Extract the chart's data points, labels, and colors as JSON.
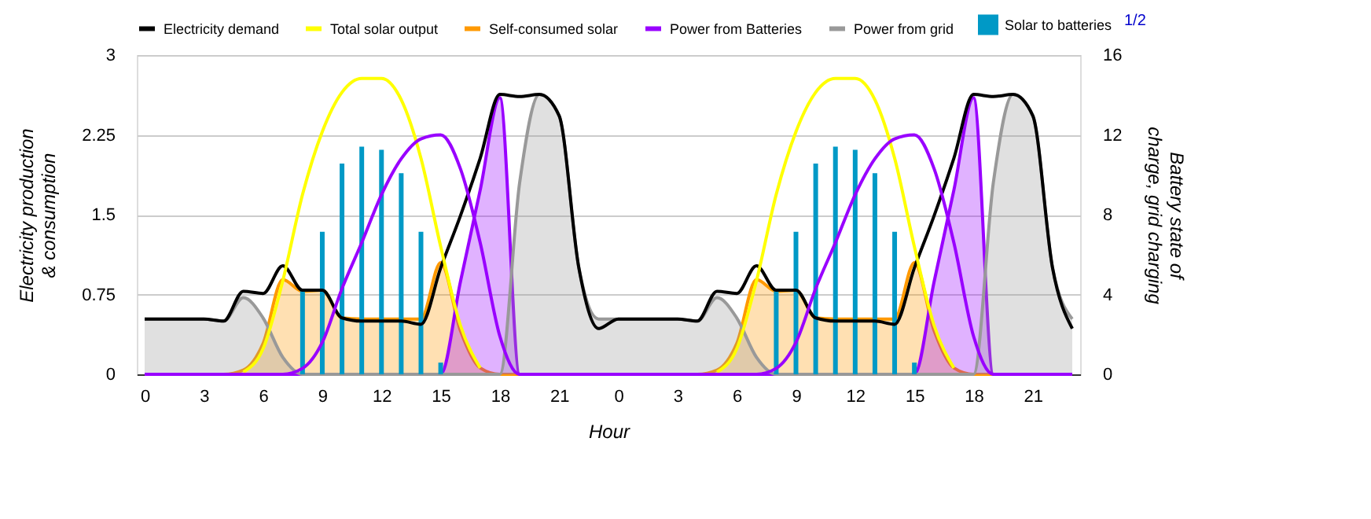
{
  "chart_data": {
    "type": "line",
    "xlabel": "Hour",
    "ylabel": "Electricity production & consumption",
    "y2label": "Battery state of charge, grid charging",
    "categories": [
      "0",
      null,
      null,
      "3",
      null,
      null,
      "6",
      null,
      null,
      "9",
      null,
      null,
      "12",
      null,
      null,
      "15",
      null,
      null,
      "18",
      null,
      null,
      "21",
      null,
      null,
      "0",
      null,
      null,
      "3",
      null,
      null,
      "6",
      null,
      null,
      "9",
      null,
      null,
      "12",
      null,
      null,
      "15",
      null,
      null,
      "18",
      null,
      null,
      "21",
      null,
      null
    ],
    "ylim": [
      0,
      3
    ],
    "yticks": [
      0,
      0.75,
      1.5,
      2.25,
      3
    ],
    "y2lim": [
      0,
      16
    ],
    "y2ticks": [
      0,
      4,
      8,
      12,
      16
    ],
    "grid": "y",
    "legend": "top",
    "annotations": [
      "1/2"
    ],
    "series": [
      {
        "name": "Electricity demand",
        "color": "#000000",
        "values": [
          0.52,
          0.52,
          0.52,
          0.52,
          0.5,
          0.78,
          0.76,
          1.02,
          0.79,
          0.79,
          0.53,
          0.5,
          0.5,
          0.5,
          0.47,
          1.0,
          1.49,
          2.03,
          2.63,
          2.61,
          2.63,
          2.43,
          1.0,
          0.43,
          0.52,
          0.52,
          0.52,
          0.52,
          0.5,
          0.78,
          0.76,
          1.02,
          0.79,
          0.79,
          0.53,
          0.5,
          0.5,
          0.5,
          0.47,
          1.0,
          1.49,
          2.03,
          2.63,
          2.61,
          2.63,
          2.43,
          1.0,
          0.43
        ]
      },
      {
        "name": "Total solar output",
        "color": "#ffff00",
        "values": [
          null,
          null,
          null,
          null,
          null,
          0.02,
          0.24,
          0.88,
          1.69,
          2.28,
          2.65,
          2.78,
          2.78,
          2.58,
          2.03,
          1.2,
          0.46,
          0.06,
          null,
          null,
          null,
          null,
          null,
          null,
          null,
          null,
          null,
          null,
          null,
          0.02,
          0.24,
          0.88,
          1.69,
          2.28,
          2.65,
          2.78,
          2.78,
          2.58,
          2.03,
          1.2,
          0.46,
          0.06,
          null,
          null,
          null,
          null,
          null,
          null
        ]
      },
      {
        "name": "Self-consumed solar",
        "color": "#ff9900",
        "type": "area",
        "values": [
          0,
          0,
          0,
          0,
          0,
          0.04,
          0.29,
          0.89,
          0.78,
          0.79,
          0.53,
          0.52,
          0.52,
          0.52,
          0.52,
          1.05,
          0.41,
          0.06,
          0,
          0,
          0,
          0,
          0,
          0,
          0,
          0,
          0,
          0,
          0,
          0.04,
          0.29,
          0.89,
          0.78,
          0.79,
          0.53,
          0.52,
          0.52,
          0.52,
          0.52,
          1.05,
          0.41,
          0.06,
          0,
          0,
          0,
          0,
          0,
          0
        ]
      },
      {
        "name": "Power from Batteries",
        "color": "#9900ff",
        "type": "area",
        "values": [
          0,
          0,
          0,
          0,
          0,
          0,
          0,
          0,
          0,
          0,
          0,
          0,
          0,
          0,
          0,
          0,
          0.87,
          1.73,
          2.6,
          0,
          0,
          0,
          0,
          0,
          0,
          0,
          0,
          0,
          0,
          0,
          0,
          0,
          0,
          0,
          0,
          0,
          0,
          0,
          0,
          0,
          0.87,
          1.73,
          2.6,
          0,
          0,
          0,
          0,
          0
        ]
      },
      {
        "name": "Power from grid",
        "color": "#999999",
        "type": "area",
        "values": [
          0.52,
          0.52,
          0.52,
          0.52,
          0.5,
          0.72,
          0.53,
          0.16,
          0,
          0,
          0,
          0,
          0,
          0,
          0,
          0,
          0,
          0,
          0,
          1.8,
          2.63,
          2.43,
          1.0,
          0.52,
          0.52,
          0.52,
          0.52,
          0.52,
          0.5,
          0.72,
          0.53,
          0.16,
          0,
          0,
          0,
          0,
          0,
          0,
          0,
          0,
          0,
          0,
          0,
          1.8,
          2.63,
          2.43,
          1.0,
          0.52
        ]
      },
      {
        "name": "Solar to batteries",
        "color": "#0099c6",
        "type": "bar",
        "values": [
          null,
          null,
          null,
          null,
          null,
          null,
          null,
          null,
          0.79,
          1.34,
          1.98,
          2.14,
          2.11,
          1.89,
          1.34,
          0.11,
          null,
          null,
          null,
          null,
          null,
          null,
          null,
          null,
          null,
          null,
          null,
          null,
          null,
          null,
          null,
          null,
          0.79,
          1.34,
          1.98,
          2.14,
          2.11,
          1.89,
          1.34,
          0.11,
          null,
          null,
          null,
          null,
          null,
          null,
          null,
          null
        ]
      },
      {
        "color": "#9900ff",
        "axis": "y2",
        "values": [
          0,
          0,
          0,
          0,
          0,
          0,
          0,
          0,
          0.3,
          1.6,
          4.3,
          6.6,
          9,
          10.8,
          11.8,
          12,
          10.3,
          6.6,
          1.9,
          0,
          0,
          0,
          0,
          0,
          0,
          0,
          0,
          0,
          0,
          0,
          0,
          0,
          0.3,
          1.6,
          4.3,
          6.6,
          9,
          10.8,
          11.8,
          12,
          10.3,
          6.6,
          1.9,
          0,
          0,
          0,
          0,
          0
        ]
      }
    ]
  }
}
